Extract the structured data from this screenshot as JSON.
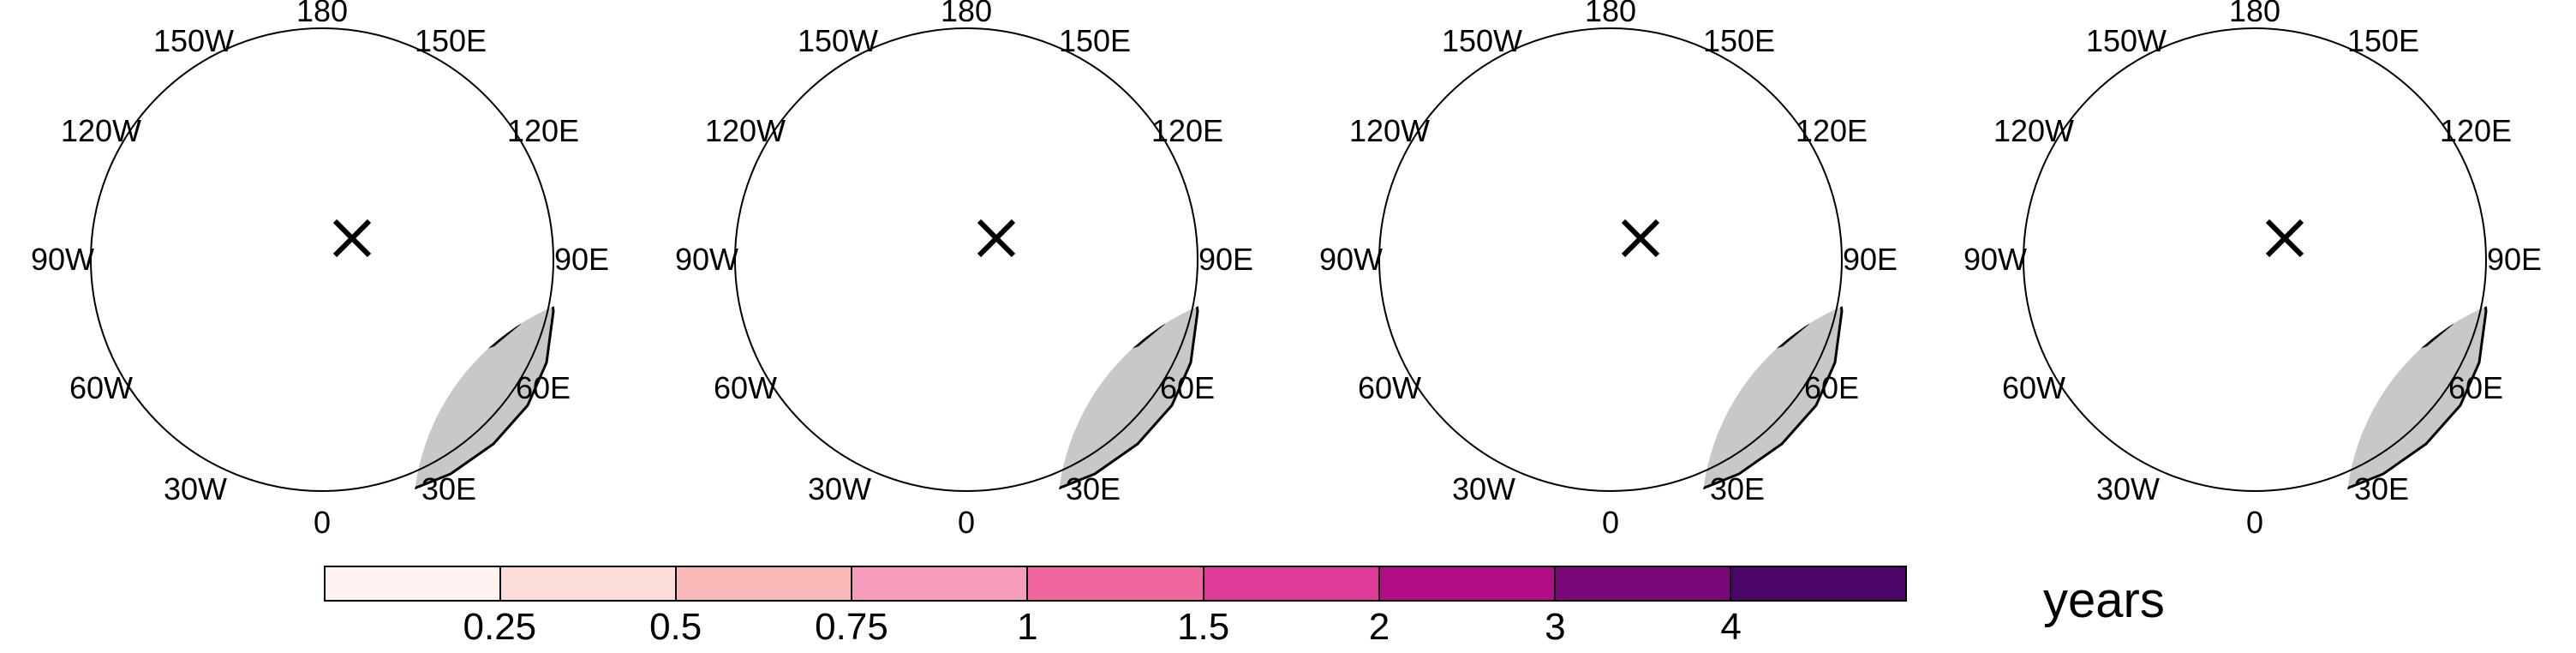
{
  "panels": [
    {
      "id": "p1",
      "lon_labels": {
        "l180": "180",
        "l150w": "150W",
        "l150e": "150E",
        "l120w": "120W",
        "l120e": "120E",
        "l90w": "90W",
        "l90e": "90E",
        "l60w": "60W",
        "l60e": "60E",
        "l30w": "30W",
        "l30e": "30E",
        "l0": "0"
      }
    },
    {
      "id": "p2",
      "lon_labels": {
        "l180": "180",
        "l150w": "150W",
        "l150e": "150E",
        "l120w": "120W",
        "l120e": "120E",
        "l90w": "90W",
        "l90e": "90E",
        "l60w": "60W",
        "l60e": "60E",
        "l30w": "30W",
        "l30e": "30E",
        "l0": "0"
      }
    },
    {
      "id": "p3",
      "lon_labels": {
        "l180": "180",
        "l150w": "150W",
        "l150e": "150E",
        "l120w": "120W",
        "l120e": "120E",
        "l90w": "90W",
        "l90e": "90E",
        "l60w": "60W",
        "l60e": "60E",
        "l30w": "30W",
        "l30e": "30E",
        "l0": "0"
      }
    },
    {
      "id": "p4",
      "lon_labels": {
        "l180": "180",
        "l150w": "150W",
        "l150e": "150E",
        "l120w": "120W",
        "l120e": "120E",
        "l90w": "90W",
        "l90e": "90E",
        "l60w": "60W",
        "l60e": "60E",
        "l30w": "30W",
        "l30e": "30E",
        "l0": "0"
      }
    }
  ],
  "colorbar": {
    "colors": [
      "#fff2f0",
      "#fcdcd8",
      "#fabbb8",
      "#f79dbb",
      "#f266a0",
      "#de3a97",
      "#b00d86",
      "#7a0778",
      "#4a0566"
    ],
    "tick_labels": [
      "0.25",
      "0.5",
      "0.75",
      "1",
      "1.5",
      "2",
      "3",
      "4"
    ],
    "units": "years"
  },
  "colors": {
    "land": "#c8c8c8",
    "outline": "#000000",
    "ocean": "#ffffff"
  }
}
